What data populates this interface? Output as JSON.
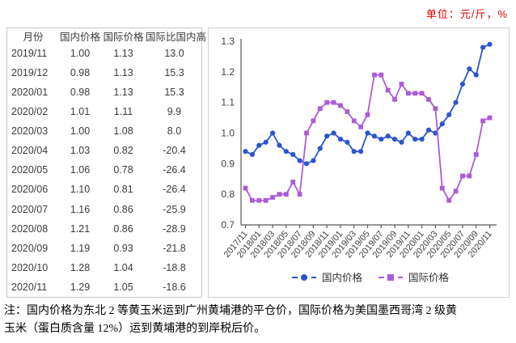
{
  "unit_label": "单位：元/斤，%",
  "table": {
    "headers": [
      "月份",
      "国内价格",
      "国际价格",
      "国际比国内高"
    ],
    "rows": [
      [
        "2019/11",
        "1.00",
        "1.13",
        "13.0"
      ],
      [
        "2019/12",
        "0.98",
        "1.13",
        "15.3"
      ],
      [
        "2020/01",
        "0.98",
        "1.13",
        "15.3"
      ],
      [
        "2020/02",
        "1.01",
        "1.11",
        "9.9"
      ],
      [
        "2020/03",
        "1.00",
        "1.08",
        "8.0"
      ],
      [
        "2020/04",
        "1.03",
        "0.82",
        "-20.4"
      ],
      [
        "2020/05",
        "1.06",
        "0.78",
        "-26.4"
      ],
      [
        "2020/06",
        "1.10",
        "0.81",
        "-26.4"
      ],
      [
        "2020/07",
        "1.16",
        "0.86",
        "-25.9"
      ],
      [
        "2020/08",
        "1.21",
        "0.86",
        "-28.9"
      ],
      [
        "2020/09",
        "1.19",
        "0.93",
        "-21.8"
      ],
      [
        "2020/10",
        "1.28",
        "1.04",
        "-18.8"
      ],
      [
        "2020/11",
        "1.29",
        "1.05",
        "-18.6"
      ]
    ]
  },
  "chart_data": {
    "type": "line",
    "title": "",
    "xlabel": "",
    "ylabel": "",
    "x": [
      "2017/11",
      "2017/12",
      "2018/01",
      "2018/02",
      "2018/03",
      "2018/04",
      "2018/05",
      "2018/06",
      "2018/07",
      "2018/08",
      "2018/09",
      "2018/10",
      "2018/11",
      "2018/12",
      "2019/01",
      "2019/02",
      "2019/03",
      "2019/04",
      "2019/05",
      "2019/06",
      "2019/07",
      "2019/08",
      "2019/09",
      "2019/10",
      "2019/11",
      "2019/12",
      "2020/01",
      "2020/02",
      "2020/03",
      "2020/04",
      "2020/05",
      "2020/06",
      "2020/07",
      "2020/08",
      "2020/09",
      "2020/10",
      "2020/11"
    ],
    "x_label_interval": 2,
    "ylim": [
      0.7,
      1.3
    ],
    "yticks": [
      "1.3",
      "1.2",
      "1.1",
      "1.0",
      "0.9",
      "0.8",
      "0.7"
    ],
    "grid": false,
    "legend_position": "bottom",
    "series": [
      {
        "name": "国内价格",
        "marker": "circle",
        "color": "#2b55ce",
        "values": [
          0.94,
          0.93,
          0.96,
          0.97,
          1.0,
          0.96,
          0.94,
          0.93,
          0.91,
          0.9,
          0.91,
          0.95,
          0.99,
          1.0,
          0.98,
          0.97,
          0.94,
          0.94,
          1.0,
          0.99,
          0.98,
          0.99,
          0.98,
          0.97,
          1.0,
          0.98,
          0.98,
          1.01,
          1.0,
          1.03,
          1.06,
          1.1,
          1.16,
          1.21,
          1.19,
          1.28,
          1.29
        ]
      },
      {
        "name": "国际价格",
        "marker": "square",
        "color": "#ac5cd8",
        "values": [
          0.82,
          0.78,
          0.78,
          0.78,
          0.79,
          0.8,
          0.8,
          0.84,
          0.8,
          1.0,
          1.04,
          1.08,
          1.1,
          1.1,
          1.09,
          1.07,
          1.04,
          1.02,
          1.06,
          1.19,
          1.19,
          1.14,
          1.11,
          1.16,
          1.13,
          1.13,
          1.13,
          1.11,
          1.08,
          0.82,
          0.78,
          0.81,
          0.86,
          0.86,
          0.93,
          1.04,
          1.05
        ]
      }
    ]
  },
  "note_lines": [
    "注：国内价格为东北 2 等黄玉米运到广州黄埔港的平仓价，国际价格为美国墨西哥湾 2 级黄",
    "玉米（蛋白质含量 12%）运到黄埔港的到岸税后价。"
  ]
}
